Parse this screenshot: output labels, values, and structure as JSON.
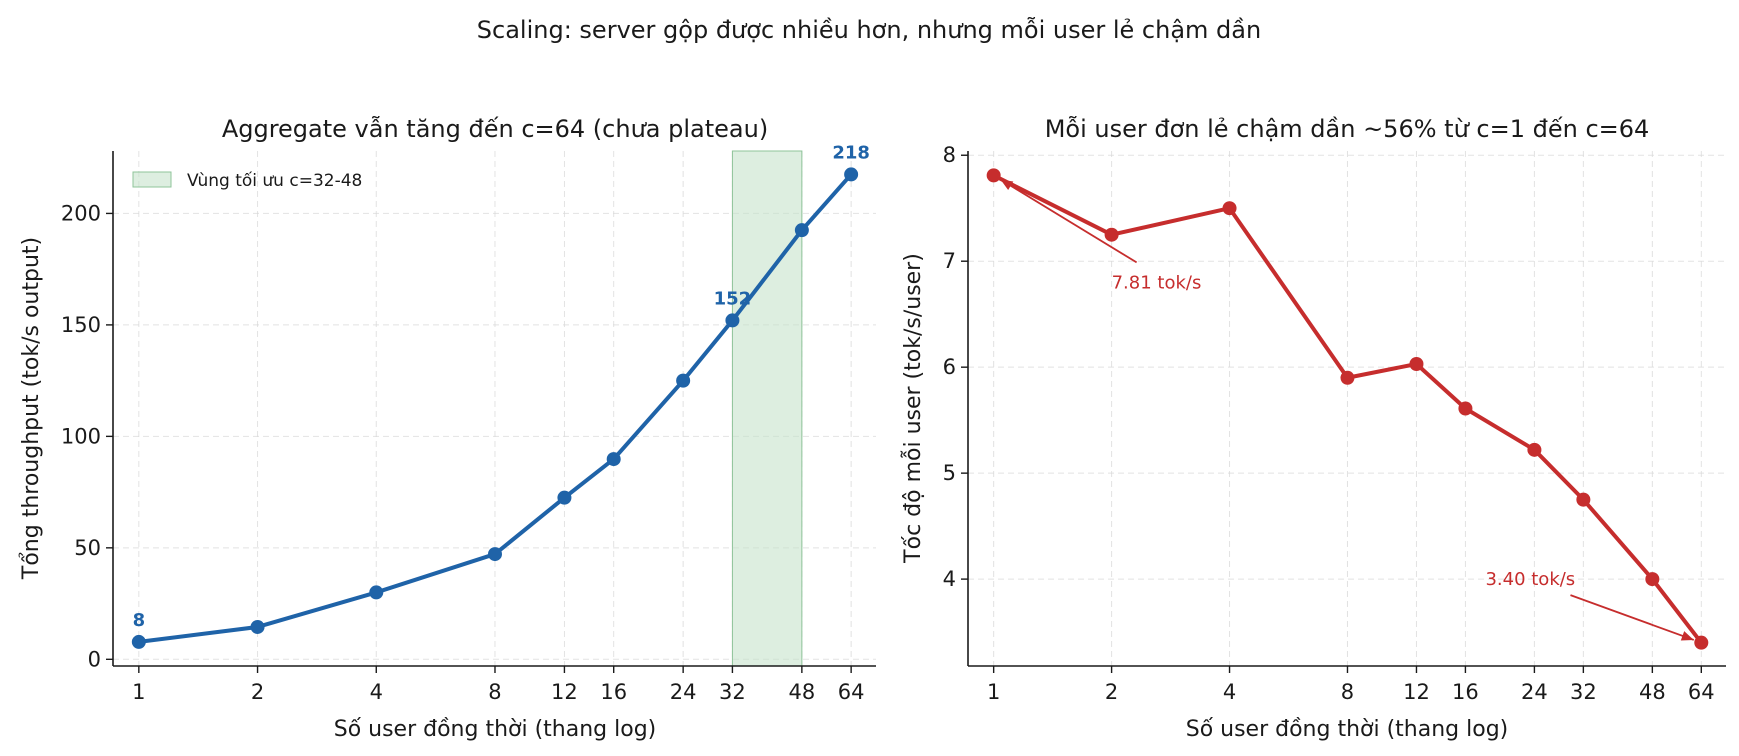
{
  "suptitle": "Scaling: server gộp được nhiều hơn, nhưng mỗi user lẻ chậm dần",
  "chart_data": [
    {
      "type": "line",
      "title": "Aggregate vẫn tăng đến c=64 (chưa plateau)",
      "xlabel": "Số user đồng thời (thang log)",
      "ylabel": "Tổng throughput (tok/s output)",
      "xscale": "log",
      "x": [
        1,
        2,
        4,
        8,
        12,
        16,
        24,
        32,
        48,
        64
      ],
      "xticks": [
        "1",
        "2",
        "4",
        "8",
        "12",
        "16",
        "24",
        "32",
        "48",
        "64"
      ],
      "ylim": [
        -3,
        228
      ],
      "yticks": [
        0,
        50,
        100,
        150,
        200
      ],
      "grid": true,
      "color": "#1f63a8",
      "series": [
        {
          "values": [
            7.8,
            14.5,
            30.0,
            47.2,
            72.5,
            89.8,
            125.0,
            152.0,
            192.5,
            217.5
          ]
        }
      ],
      "point_labels": [
        {
          "x": 1,
          "text": "8"
        },
        {
          "x": 32,
          "text": "152"
        },
        {
          "x": 64,
          "text": "218"
        }
      ],
      "shaded_region": {
        "x_from": 32,
        "x_to": 48,
        "color": "#c7e2cc",
        "label": "Vùng tối ưu c=32-48"
      },
      "legend_position": "upper-left"
    },
    {
      "type": "line",
      "title": "Mỗi user đơn lẻ chậm dần ~56% từ c=1 đến c=64",
      "xlabel": "Số user đồng thời (thang log)",
      "ylabel": "Tốc độ mỗi user (tok/s/user)",
      "xscale": "log",
      "x": [
        1,
        2,
        4,
        8,
        12,
        16,
        24,
        32,
        48,
        64
      ],
      "xticks": [
        "1",
        "2",
        "4",
        "8",
        "12",
        "16",
        "24",
        "32",
        "48",
        "64"
      ],
      "ylim": [
        3.18,
        8.04
      ],
      "yticks": [
        4,
        5,
        6,
        7,
        8
      ],
      "grid": true,
      "color": "#c62d2d",
      "series": [
        {
          "values": [
            7.81,
            7.25,
            7.5,
            5.9,
            6.03,
            5.61,
            5.22,
            4.75,
            4.0,
            3.4
          ]
        }
      ],
      "annotations": [
        {
          "text": "7.81 tok/s",
          "point_x": 1,
          "point_y": 7.81,
          "text_x": 2,
          "text_y": 6.8
        },
        {
          "text": "3.40 tok/s",
          "point_x": 64,
          "point_y": 3.4,
          "text_x": 18,
          "text_y": 4.0
        }
      ]
    }
  ]
}
